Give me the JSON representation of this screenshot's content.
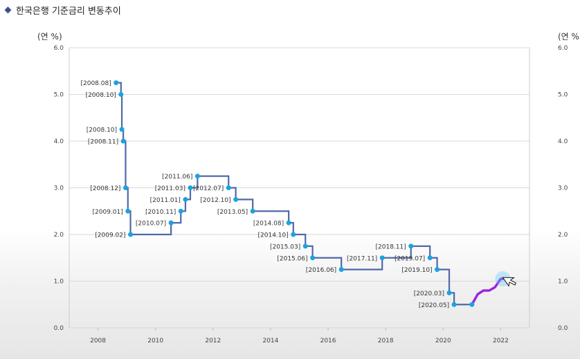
{
  "title": "한국은행 기준금리 변동추이",
  "unit_left": "(연 %)",
  "unit_right": "(연 %",
  "colors": {
    "line": "#5068a8",
    "point": "#1aa3e0",
    "highlight": "#9b26d8",
    "diamond": "#3b4f8c"
  },
  "chart_data": {
    "type": "line",
    "step": true,
    "title": "",
    "xlabel": "",
    "ylabel": "(연 %)",
    "xlim": [
      2007.0,
      2023.0
    ],
    "ylim": [
      0.0,
      6.0
    ],
    "grid": true,
    "x_ticks": [
      2008,
      2010,
      2012,
      2014,
      2016,
      2018,
      2020,
      2022
    ],
    "y_ticks": [
      "0.0",
      "1.0",
      "2.0",
      "3.0",
      "4.0",
      "5.0",
      "6.0"
    ],
    "series": [
      {
        "points": [
          {
            "x": 2008.63,
            "y": 5.25,
            "label": "[2008.08]"
          },
          {
            "x": 2008.8,
            "y": 5.0,
            "label": "[2008.10]"
          },
          {
            "x": 2008.83,
            "y": 4.25,
            "label": "[2008.10]"
          },
          {
            "x": 2008.88,
            "y": 4.0,
            "label": "[2008.11]"
          },
          {
            "x": 2008.96,
            "y": 3.0,
            "label": "[2008.12]"
          },
          {
            "x": 2009.04,
            "y": 2.5,
            "label": "[2009.01]"
          },
          {
            "x": 2009.13,
            "y": 2.0,
            "label": "[2009.02]"
          },
          {
            "x": 2010.54,
            "y": 2.25,
            "label": "[2010.07]"
          },
          {
            "x": 2010.88,
            "y": 2.5,
            "label": "[2010.11]"
          },
          {
            "x": 2011.04,
            "y": 2.75,
            "label": "[2011.01]"
          },
          {
            "x": 2011.21,
            "y": 3.0,
            "label": "[2011.03]"
          },
          {
            "x": 2011.46,
            "y": 3.25,
            "label": "[2011.06]"
          },
          {
            "x": 2012.54,
            "y": 3.0,
            "label": "[2012.07]"
          },
          {
            "x": 2012.79,
            "y": 2.75,
            "label": "[2012.10]"
          },
          {
            "x": 2013.38,
            "y": 2.5,
            "label": "[2013.05]"
          },
          {
            "x": 2014.63,
            "y": 2.25,
            "label": "[2014.08]"
          },
          {
            "x": 2014.79,
            "y": 2.0,
            "label": "[2014.10]"
          },
          {
            "x": 2015.21,
            "y": 1.75,
            "label": "[2015.03]"
          },
          {
            "x": 2015.46,
            "y": 1.5,
            "label": "[2015.06]"
          },
          {
            "x": 2016.46,
            "y": 1.25,
            "label": "[2016.06]"
          },
          {
            "x": 2017.88,
            "y": 1.5,
            "label": "[2017.11]"
          },
          {
            "x": 2018.88,
            "y": 1.75,
            "label": "[2018.11]"
          },
          {
            "x": 2019.54,
            "y": 1.5,
            "label": "[2019.07]"
          },
          {
            "x": 2019.79,
            "y": 1.25,
            "label": "[2019.10]"
          },
          {
            "x": 2020.21,
            "y": 0.75,
            "label": "[2020.03]"
          },
          {
            "x": 2020.38,
            "y": 0.5,
            "label": "[2020.05]"
          },
          {
            "x": 2021.0,
            "y": 0.5,
            "label": ""
          }
        ]
      }
    ],
    "highlight_series": {
      "points": [
        {
          "x": 2021.0,
          "y": 0.5
        },
        {
          "x": 2021.2,
          "y": 0.72
        },
        {
          "x": 2021.4,
          "y": 0.8
        },
        {
          "x": 2021.6,
          "y": 0.8
        },
        {
          "x": 2021.8,
          "y": 0.87
        },
        {
          "x": 2021.9,
          "y": 0.96
        },
        {
          "x": 2022.0,
          "y": 1.05
        },
        {
          "x": 2022.12,
          "y": 1.05
        }
      ]
    }
  }
}
